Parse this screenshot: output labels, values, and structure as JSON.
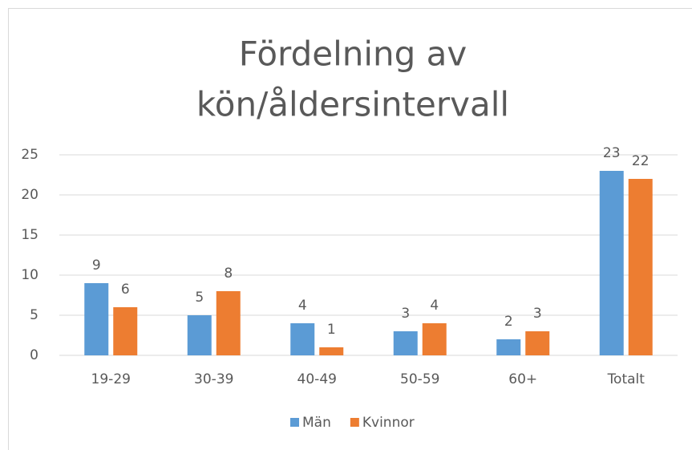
{
  "chart_data": {
    "type": "bar",
    "title_lines": [
      "Fördelning av",
      "kön/åldersintervall"
    ],
    "categories": [
      "19-29",
      "30-39",
      "40-49",
      "50-59",
      "60+",
      "Totalt"
    ],
    "series": [
      {
        "name": "Män",
        "color": "#5b9bd5",
        "values": [
          9,
          5,
          4,
          3,
          2,
          23
        ]
      },
      {
        "name": "Kvinnor",
        "color": "#ed7d31",
        "values": [
          6,
          8,
          1,
          4,
          3,
          22
        ]
      }
    ],
    "ylim": [
      0,
      25
    ],
    "yticks": [
      0,
      5,
      10,
      15,
      20,
      25
    ],
    "grid": true,
    "legend": "bottom"
  }
}
